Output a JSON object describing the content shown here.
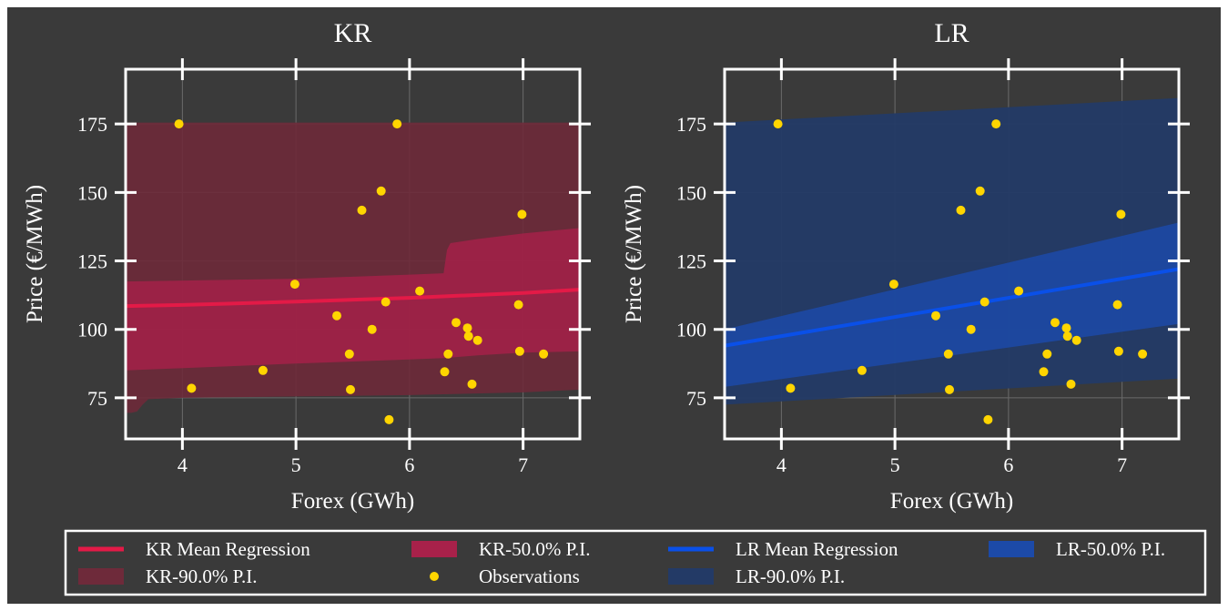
{
  "chart_data": [
    {
      "type": "scatter",
      "title": "KR",
      "xlabel": "Forex (GWh)",
      "ylabel": "Price (€/MWh)",
      "xlim": [
        3.5,
        7.5
      ],
      "ylim": [
        60,
        195
      ],
      "xticks": [
        4,
        5,
        6,
        7
      ],
      "yticks": [
        75,
        100,
        125,
        150,
        175
      ],
      "grid": true,
      "observations": [
        {
          "x": 3.97,
          "y": 175
        },
        {
          "x": 4.08,
          "y": 78.5
        },
        {
          "x": 4.71,
          "y": 85
        },
        {
          "x": 4.99,
          "y": 116.5
        },
        {
          "x": 5.36,
          "y": 105
        },
        {
          "x": 5.47,
          "y": 91
        },
        {
          "x": 5.48,
          "y": 78
        },
        {
          "x": 5.58,
          "y": 143.5
        },
        {
          "x": 5.67,
          "y": 100
        },
        {
          "x": 5.75,
          "y": 150.5
        },
        {
          "x": 5.79,
          "y": 110
        },
        {
          "x": 5.82,
          "y": 67
        },
        {
          "x": 5.89,
          "y": 175
        },
        {
          "x": 6.09,
          "y": 114
        },
        {
          "x": 6.31,
          "y": 84.5
        },
        {
          "x": 6.34,
          "y": 91
        },
        {
          "x": 6.41,
          "y": 102.5
        },
        {
          "x": 6.51,
          "y": 100.5
        },
        {
          "x": 6.52,
          "y": 97.5
        },
        {
          "x": 6.55,
          "y": 80
        },
        {
          "x": 6.6,
          "y": 96
        },
        {
          "x": 6.96,
          "y": 109
        },
        {
          "x": 6.97,
          "y": 92
        },
        {
          "x": 6.99,
          "y": 142
        },
        {
          "x": 7.18,
          "y": 91
        }
      ],
      "series": [
        {
          "name": "KR Mean Regression",
          "kind": "line",
          "color": "#e31a47",
          "x": [
            3.5,
            4.0,
            5.0,
            6.0,
            7.0,
            7.5
          ],
          "y": [
            108.5,
            108.9,
            110.1,
            111.5,
            113.3,
            114.5
          ]
        },
        {
          "name": "KR-50.0% P.I.",
          "kind": "band",
          "color": "#a8214a",
          "opacity": 0.8,
          "x": [
            3.5,
            5.0,
            6.0,
            6.3,
            6.33,
            6.36,
            6.6,
            7.0,
            7.5
          ],
          "lower": [
            85,
            87.5,
            89,
            89.5,
            89.6,
            89.7,
            90.5,
            91.5,
            92
          ],
          "upper": [
            117.5,
            118.5,
            120,
            120.5,
            129,
            131.5,
            133,
            135,
            137
          ]
        },
        {
          "name": "KR-90.0% P.I.",
          "kind": "band",
          "color": "#6e2a3a",
          "opacity": 0.9,
          "x": [
            3.5,
            3.55,
            3.6,
            3.65,
            3.7,
            4.0,
            5.0,
            6.0,
            7.0,
            7.5
          ],
          "lower": [
            69.5,
            69.5,
            70,
            72.5,
            74.5,
            75,
            75.5,
            76,
            77,
            78
          ],
          "upper": [
            175.5,
            175.5,
            175.5,
            175.5,
            175.5,
            175.5,
            175.5,
            175.5,
            175.5,
            175.5
          ]
        }
      ]
    },
    {
      "type": "scatter",
      "title": "LR",
      "xlabel": "Forex (GWh)",
      "ylabel": "Price (€/MWh)",
      "xlim": [
        3.5,
        7.5
      ],
      "ylim": [
        60,
        195
      ],
      "xticks": [
        4,
        5,
        6,
        7
      ],
      "yticks": [
        75,
        100,
        125,
        150,
        175
      ],
      "grid": true,
      "observations": [
        {
          "x": 3.97,
          "y": 175
        },
        {
          "x": 4.08,
          "y": 78.5
        },
        {
          "x": 4.71,
          "y": 85
        },
        {
          "x": 4.99,
          "y": 116.5
        },
        {
          "x": 5.36,
          "y": 105
        },
        {
          "x": 5.47,
          "y": 91
        },
        {
          "x": 5.48,
          "y": 78
        },
        {
          "x": 5.58,
          "y": 143.5
        },
        {
          "x": 5.67,
          "y": 100
        },
        {
          "x": 5.75,
          "y": 150.5
        },
        {
          "x": 5.79,
          "y": 110
        },
        {
          "x": 5.82,
          "y": 67
        },
        {
          "x": 5.89,
          "y": 175
        },
        {
          "x": 6.09,
          "y": 114
        },
        {
          "x": 6.31,
          "y": 84.5
        },
        {
          "x": 6.34,
          "y": 91
        },
        {
          "x": 6.41,
          "y": 102.5
        },
        {
          "x": 6.51,
          "y": 100.5
        },
        {
          "x": 6.52,
          "y": 97.5
        },
        {
          "x": 6.55,
          "y": 80
        },
        {
          "x": 6.6,
          "y": 96
        },
        {
          "x": 6.96,
          "y": 109
        },
        {
          "x": 6.97,
          "y": 92
        },
        {
          "x": 6.99,
          "y": 142
        },
        {
          "x": 7.18,
          "y": 91
        }
      ],
      "series": [
        {
          "name": "LR Mean Regression",
          "kind": "line",
          "color": "#0a50e8",
          "x": [
            3.5,
            7.5
          ],
          "y": [
            94,
            122
          ]
        },
        {
          "name": "LR-50.0% P.I.",
          "kind": "band",
          "color": "#1c4aa8",
          "opacity": 0.85,
          "x": [
            3.5,
            7.5
          ],
          "lower": [
            79,
            102
          ],
          "upper": [
            100,
            139
          ]
        },
        {
          "name": "LR-90.0% P.I.",
          "kind": "band",
          "color": "#233a66",
          "opacity": 0.95,
          "x": [
            3.5,
            7.5
          ],
          "lower": [
            72.5,
            82
          ],
          "upper": [
            175.5,
            184.5
          ]
        }
      ]
    }
  ],
  "legend": {
    "placement": "bottom",
    "columns": 4,
    "entries": [
      {
        "label": "KR Mean Regression",
        "kind": "line",
        "color": "#e31a47"
      },
      {
        "label": "KR-90.0% P.I.",
        "kind": "patch",
        "color": "#6e2a3a"
      },
      {
        "label": "KR-50.0% P.I.",
        "kind": "patch",
        "color": "#a8214a"
      },
      {
        "label": "Observations",
        "kind": "marker",
        "color": "#ffd500"
      },
      {
        "label": "LR Mean Regression",
        "kind": "line",
        "color": "#0a50e8"
      },
      {
        "label": "LR-90.0% P.I.",
        "kind": "patch",
        "color": "#233a66"
      },
      {
        "label": "LR-50.0% P.I.",
        "kind": "patch",
        "color": "#1c4aa8"
      }
    ]
  },
  "colors": {
    "figure_background": "#3a3a3a",
    "axes_foreground": "#ffffff",
    "grid": "#6a6a6a",
    "observations": "#ffd500"
  }
}
